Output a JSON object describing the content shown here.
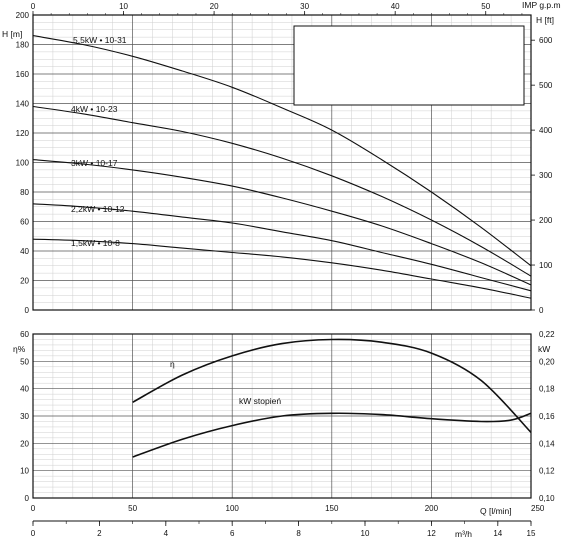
{
  "chart_data": [
    {
      "type": "line",
      "title": "",
      "xlabel": "Q [l/min]",
      "ylabel": "H [m]",
      "ylabel_right": "H [ft]",
      "xlabel_top": "IMP g.p.m.",
      "xlim": [
        0,
        250
      ],
      "ylim": [
        0,
        200
      ],
      "ylim_right": [
        0,
        656
      ],
      "top_axis_lim": [
        0,
        55
      ],
      "x_ticks": [
        0,
        50,
        100,
        150,
        200,
        250
      ],
      "y_ticks": [
        0,
        20,
        40,
        60,
        80,
        100,
        120,
        140,
        160,
        180,
        200
      ],
      "y_right_ticks": [
        0,
        100,
        200,
        300,
        400,
        500,
        600
      ],
      "top_ticks": [
        0,
        10,
        20,
        30,
        40,
        50
      ],
      "legend_box": "top-right, empty",
      "grid": true,
      "series": [
        {
          "name": "5,5kW • 10-31",
          "x": [
            0,
            25,
            50,
            75,
            100,
            125,
            150,
            175,
            200,
            225,
            250
          ],
          "y": [
            186,
            180,
            172,
            162,
            151,
            137,
            122,
            102,
            80,
            56,
            30
          ]
        },
        {
          "name": "4kW • 10-23",
          "x": [
            0,
            25,
            50,
            75,
            100,
            125,
            150,
            175,
            200,
            225,
            250
          ],
          "y": [
            138,
            133,
            127,
            121,
            113,
            103,
            91,
            77,
            61,
            43,
            23
          ]
        },
        {
          "name": "3kW • 10-17",
          "x": [
            0,
            25,
            50,
            75,
            100,
            125,
            150,
            175,
            200,
            225,
            250
          ],
          "y": [
            102,
            99,
            95,
            90,
            84,
            76,
            67,
            57,
            45,
            32,
            17
          ]
        },
        {
          "name": "2,2kW • 10-12",
          "x": [
            0,
            25,
            50,
            75,
            100,
            125,
            150,
            175,
            200,
            225,
            250
          ],
          "y": [
            72,
            70,
            67,
            63,
            59,
            53,
            47,
            39,
            31,
            22,
            13
          ]
        },
        {
          "name": "1,5kW • 10-8",
          "x": [
            0,
            25,
            50,
            75,
            100,
            125,
            150,
            175,
            200,
            225,
            250
          ],
          "y": [
            48,
            47,
            45,
            42,
            39,
            36,
            32,
            27,
            21,
            15,
            8
          ]
        }
      ]
    },
    {
      "type": "line",
      "title": "",
      "xlabel": "Q [l/min]",
      "xlabel_secondary": "m³/h",
      "ylabel": "η%",
      "ylabel_right": "kW",
      "xlim": [
        0,
        250
      ],
      "ylim": [
        0,
        60
      ],
      "ylim_right": [
        0.1,
        0.22
      ],
      "x_ticks": [
        0,
        50,
        100,
        150,
        200,
        250
      ],
      "y_ticks": [
        0,
        10,
        20,
        30,
        40,
        50,
        60
      ],
      "y_right_ticks": [
        "0,10",
        "0,12",
        "0,14",
        "0,16",
        "0,18",
        "0,20",
        "0,22"
      ],
      "x_secondary_lim": [
        0,
        15
      ],
      "x_secondary_ticks": [
        0,
        2,
        4,
        6,
        8,
        10,
        12,
        14,
        15
      ],
      "grid": true,
      "annotations": [
        "η",
        "kW stopień"
      ],
      "series": [
        {
          "name": "η",
          "x": [
            50,
            75,
            100,
            125,
            150,
            175,
            200,
            225,
            250
          ],
          "y": [
            35,
            45,
            52,
            56.5,
            58,
            57,
            53,
            43,
            24
          ]
        },
        {
          "name": "kW stopień",
          "axis": "right",
          "x": [
            50,
            75,
            100,
            125,
            150,
            175,
            200,
            225,
            240,
            250
          ],
          "y": [
            0.13,
            0.143,
            0.153,
            0.16,
            0.162,
            0.161,
            0.158,
            0.156,
            0.157,
            0.162
          ]
        }
      ]
    }
  ]
}
